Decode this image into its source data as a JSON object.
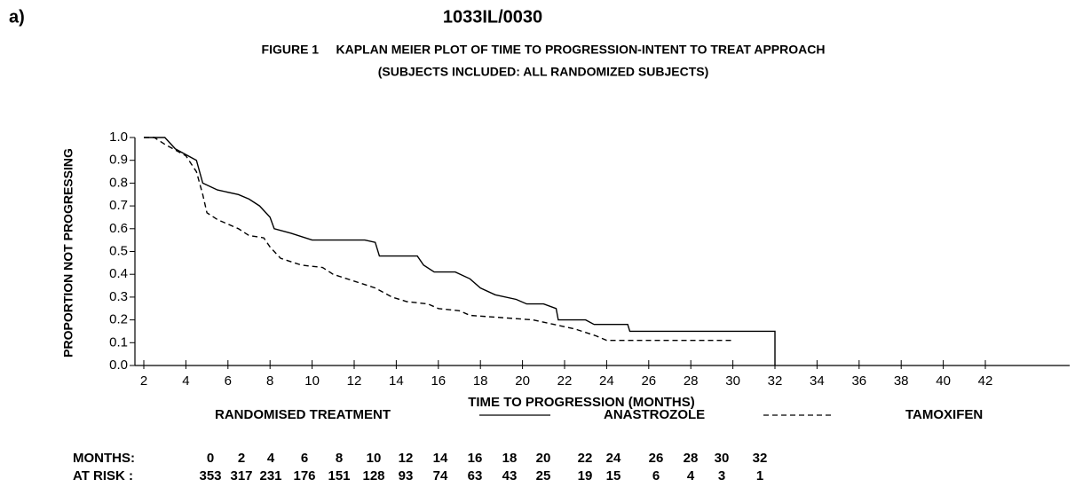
{
  "panel_label": "a)",
  "chart_data": {
    "type": "line",
    "title": "1033IL/0030",
    "subtitle": "FIGURE 1     KAPLAN MEIER PLOT OF TIME TO PROGRESSION-INTENT TO TREAT APPROACH",
    "subtitle2": "(SUBJECTS INCLUDED: ALL RANDOMIZED SUBJECTS)",
    "x_label": "TIME TO PROGRESSION (MONTHS)",
    "y_label": "PROPORTION NOT PROGRESSING",
    "legend_title": "RANDOMISED TREATMENT",
    "xlim": [
      1.6,
      46
    ],
    "ylim": [
      0,
      1.0
    ],
    "xticks": [
      2,
      4,
      6,
      8,
      10,
      12,
      14,
      16,
      18,
      20,
      22,
      24,
      26,
      28,
      30,
      32,
      34,
      36,
      38,
      40,
      42
    ],
    "yticks": [
      {
        "value": 0,
        "label": "0.0"
      },
      {
        "value": 0.1,
        "label": "0.1"
      },
      {
        "value": 0.2,
        "label": "0.2"
      },
      {
        "value": 0.3,
        "label": "0.3"
      },
      {
        "value": 0.4,
        "label": "0.4"
      },
      {
        "value": 0.5,
        "label": "0.5"
      },
      {
        "value": 0.6,
        "label": "0.6"
      },
      {
        "value": 0.7,
        "label": "0.7"
      },
      {
        "value": 0.8,
        "label": "0.8"
      },
      {
        "value": 0.9,
        "label": "0.9"
      },
      {
        "value": 1.0,
        "label": "1.0"
      }
    ],
    "series": [
      {
        "name": "ANASTROZOLE",
        "color": "#000000",
        "line_style": "solid",
        "x": [
          2,
          3,
          3.5,
          4.5,
          4.8,
          5.5,
          6.5,
          7,
          7.5,
          8,
          8.2,
          9,
          10,
          12.5,
          13,
          13.2,
          15,
          15.3,
          15.8,
          16.8,
          17.5,
          18,
          18.7,
          19.7,
          20.2,
          21,
          21.6,
          21.7,
          23,
          23.4,
          25,
          25.1,
          32,
          32
        ],
        "values": [
          1.0,
          1.0,
          0.95,
          0.9,
          0.8,
          0.77,
          0.75,
          0.73,
          0.7,
          0.65,
          0.6,
          0.58,
          0.55,
          0.55,
          0.54,
          0.48,
          0.48,
          0.44,
          0.41,
          0.41,
          0.38,
          0.34,
          0.31,
          0.29,
          0.27,
          0.27,
          0.25,
          0.2,
          0.2,
          0.18,
          0.18,
          0.15,
          0.15,
          0
        ]
      },
      {
        "name": "TAMOXIFEN",
        "color": "#000000",
        "line_style": "dashed",
        "x": [
          2,
          2.5,
          3,
          4,
          4.5,
          4.8,
          5,
          5.5,
          6.5,
          7,
          7.7,
          8,
          8.5,
          9.5,
          10.5,
          11,
          12,
          13,
          13.8,
          14.5,
          15.5,
          16,
          17,
          17.5,
          19,
          20.5,
          21.5,
          22.5,
          23.5,
          24,
          30
        ],
        "values": [
          1.0,
          1.0,
          0.97,
          0.92,
          0.85,
          0.75,
          0.67,
          0.64,
          0.6,
          0.57,
          0.56,
          0.52,
          0.47,
          0.44,
          0.43,
          0.4,
          0.37,
          0.34,
          0.3,
          0.28,
          0.27,
          0.25,
          0.24,
          0.22,
          0.21,
          0.2,
          0.18,
          0.16,
          0.13,
          0.11,
          0.11
        ]
      }
    ],
    "at_risk": {
      "months_label": "MONTHS:",
      "counts_label": "AT RISK :",
      "months": [
        0,
        2,
        4,
        6,
        8,
        10,
        12,
        14,
        16,
        18,
        20,
        22,
        24,
        26,
        28,
        30,
        32
      ],
      "counts": [
        353,
        317,
        231,
        176,
        151,
        128,
        93,
        74,
        63,
        43,
        25,
        19,
        15,
        6,
        4,
        3,
        1
      ]
    }
  }
}
